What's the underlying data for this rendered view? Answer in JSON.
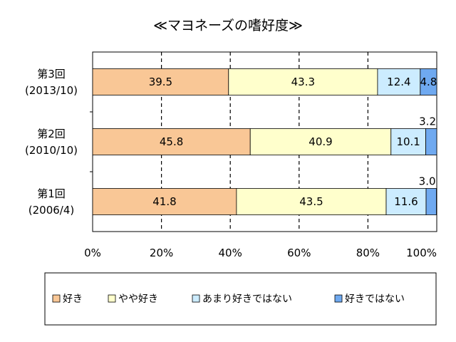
{
  "chart_data": {
    "type": "bar",
    "orientation": "horizontal",
    "stacked": "percent",
    "title": "≪マヨネーズの嗜好度≫",
    "categories": [
      {
        "line1": "第3回",
        "line2": "(2013/10)"
      },
      {
        "line1": "第2回",
        "line2": "(2010/10)"
      },
      {
        "line1": "第1回",
        "line2": "(2006/4)"
      }
    ],
    "series": [
      {
        "name": "好き",
        "color": "#f9c796",
        "values": [
          39.5,
          45.8,
          41.8
        ]
      },
      {
        "name": "やや好き",
        "color": "#ffffcc",
        "values": [
          43.3,
          40.9,
          43.5
        ]
      },
      {
        "name": "あまり好きではない",
        "color": "#ccecff",
        "values": [
          12.4,
          10.1,
          11.6
        ]
      },
      {
        "name": "好きではない",
        "color": "#6fa9f0",
        "values": [
          4.8,
          3.2,
          3.0
        ]
      }
    ],
    "xlim": [
      0,
      100
    ],
    "xticks": [
      "0%",
      "20%",
      "40%",
      "60%",
      "80%",
      "100%"
    ],
    "grid": "dashed vertical",
    "legend_position": "bottom"
  }
}
